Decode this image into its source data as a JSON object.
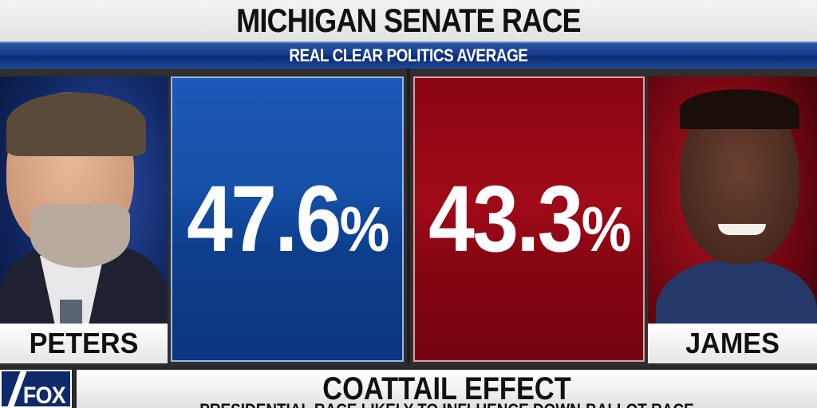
{
  "header": {
    "title": "MICHIGAN SENATE RACE",
    "subtitle": "REAL CLEAR POLITICS AVERAGE"
  },
  "candidates": [
    {
      "name": "PETERS",
      "percent": "47.6",
      "percent_sign": "%",
      "party_color": "#1550a8",
      "side": "left"
    },
    {
      "name": "JAMES",
      "percent": "43.3",
      "percent_sign": "%",
      "party_color": "#a00a18",
      "side": "right"
    }
  ],
  "ticker": {
    "network_logo": "FOX",
    "headline": "COATTAIL EFFECT",
    "subheadline": "PRESIDENTIAL RACE LIKELY TO INFLUENCE DOWN-BALLOT RACE"
  },
  "colors": {
    "democrat_blue": "#1550a8",
    "republican_red": "#a00a18",
    "banner_blue": "#163a88"
  }
}
